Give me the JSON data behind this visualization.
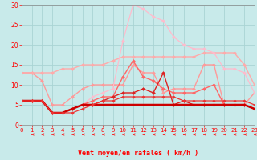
{
  "xlabel": "Vent moyen/en rafales ( km/h )",
  "xlim": [
    0,
    23
  ],
  "ylim": [
    0,
    30
  ],
  "yticks": [
    0,
    5,
    10,
    15,
    20,
    25,
    30
  ],
  "xticks": [
    0,
    1,
    2,
    3,
    4,
    5,
    6,
    7,
    8,
    9,
    10,
    11,
    12,
    13,
    14,
    15,
    16,
    17,
    18,
    19,
    20,
    21,
    22,
    23
  ],
  "bg_color": "#c8eaea",
  "grid_color": "#aad4d4",
  "lines": [
    {
      "x": [
        0,
        1,
        2,
        3,
        4,
        5,
        6,
        7,
        8,
        9,
        10,
        11,
        12,
        13,
        14,
        15,
        16,
        17,
        18,
        19,
        20,
        21,
        22,
        23
      ],
      "y": [
        13,
        13,
        11,
        5,
        5,
        7,
        9,
        10,
        10,
        10,
        10,
        15,
        13,
        13,
        8,
        9,
        9,
        9,
        15,
        15,
        5,
        5,
        5,
        8
      ],
      "color": "#ff9999",
      "lw": 1.0,
      "marker": "D",
      "ms": 2.0
    },
    {
      "x": [
        0,
        1,
        2,
        3,
        4,
        5,
        6,
        7,
        8,
        9,
        10,
        11,
        12,
        13,
        14,
        15,
        16,
        17,
        18,
        19,
        20,
        21,
        22,
        23
      ],
      "y": [
        13,
        13,
        13,
        13,
        14,
        14,
        15,
        15,
        15,
        16,
        17,
        17,
        17,
        17,
        17,
        17,
        17,
        17,
        18,
        18,
        18,
        18,
        15,
        10
      ],
      "color": "#ffaaaa",
      "lw": 1.0,
      "marker": "D",
      "ms": 2.0
    },
    {
      "x": [
        0,
        1,
        2,
        3,
        4,
        5,
        6,
        7,
        8,
        9,
        10,
        11,
        12,
        13,
        14,
        15,
        16,
        17,
        18,
        19,
        20,
        21,
        22,
        23
      ],
      "y": [
        6,
        6,
        6,
        3,
        3,
        4,
        5,
        7,
        8,
        9,
        21,
        30,
        29,
        27,
        26,
        22,
        20,
        19,
        19,
        18,
        14,
        14,
        13,
        8
      ],
      "color": "#ffbbcc",
      "lw": 0.9,
      "marker": "D",
      "ms": 2.0
    },
    {
      "x": [
        0,
        1,
        2,
        3,
        4,
        5,
        6,
        7,
        8,
        9,
        10,
        11,
        12,
        13,
        14,
        15,
        16,
        17,
        18,
        19,
        20,
        21,
        22,
        23
      ],
      "y": [
        6,
        6,
        6,
        3,
        3,
        4,
        5,
        6,
        7,
        7,
        12,
        16,
        12,
        11,
        9,
        8,
        8,
        8,
        9,
        10,
        5,
        5,
        5,
        4
      ],
      "color": "#ff6666",
      "lw": 1.0,
      "marker": "D",
      "ms": 2.0
    },
    {
      "x": [
        0,
        1,
        2,
        3,
        4,
        5,
        6,
        7,
        8,
        9,
        10,
        11,
        12,
        13,
        14,
        15,
        16,
        17,
        18,
        19,
        20,
        21,
        22,
        23
      ],
      "y": [
        6,
        6,
        6,
        3,
        3,
        4,
        5,
        5,
        6,
        7,
        8,
        8,
        9,
        8,
        13,
        5,
        6,
        5,
        5,
        5,
        5,
        5,
        5,
        4
      ],
      "color": "#dd2222",
      "lw": 1.0,
      "marker": "D",
      "ms": 2.0
    },
    {
      "x": [
        0,
        1,
        2,
        3,
        4,
        5,
        6,
        7,
        8,
        9,
        10,
        11,
        12,
        13,
        14,
        15,
        16,
        17,
        18,
        19,
        20,
        21,
        22,
        23
      ],
      "y": [
        6,
        6,
        6,
        3,
        3,
        4,
        5,
        5,
        5,
        5,
        5,
        5,
        5,
        5,
        5,
        5,
        5,
        5,
        5,
        5,
        5,
        5,
        5,
        4
      ],
      "color": "#cc0000",
      "lw": 1.8,
      "marker": null,
      "ms": 0
    },
    {
      "x": [
        0,
        1,
        2,
        3,
        4,
        5,
        6,
        7,
        8,
        9,
        10,
        11,
        12,
        13,
        14,
        15,
        16,
        17,
        18,
        19,
        20,
        21,
        22,
        23
      ],
      "y": [
        6,
        6,
        6,
        3,
        3,
        3,
        4,
        5,
        6,
        6,
        7,
        7,
        7,
        7,
        7,
        7,
        6,
        6,
        6,
        6,
        6,
        6,
        6,
        5
      ],
      "color": "#ee3333",
      "lw": 0.9,
      "marker": "D",
      "ms": 1.8
    }
  ]
}
